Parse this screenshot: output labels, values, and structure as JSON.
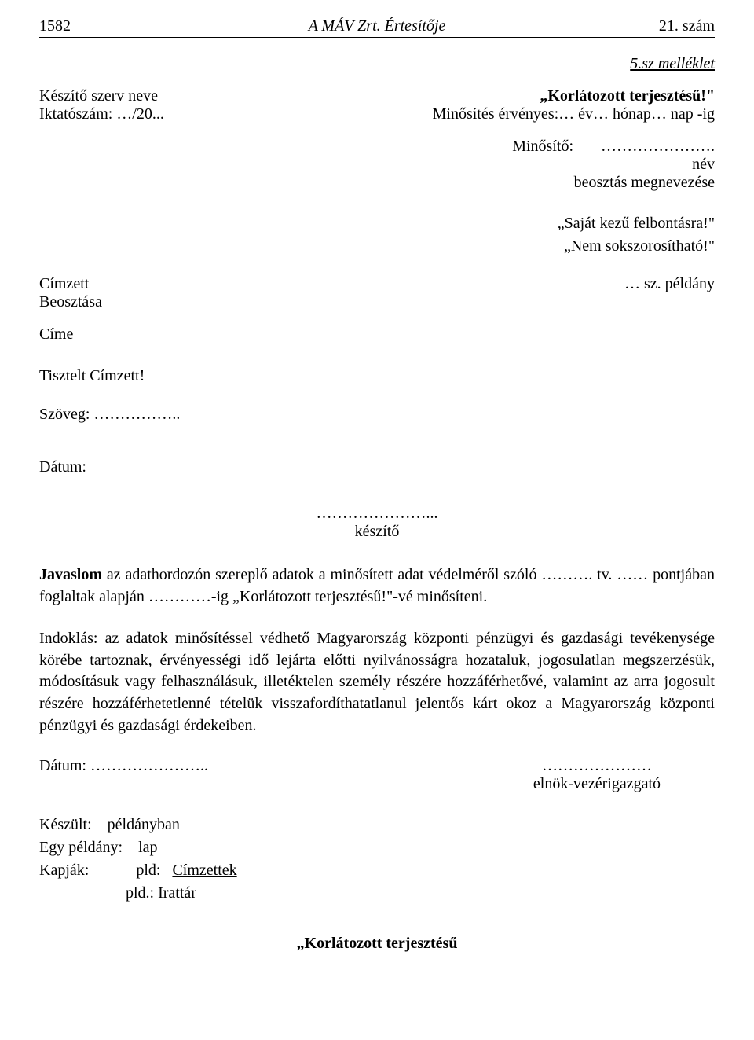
{
  "header": {
    "page_number": "1582",
    "title": "A MÁV Zrt. Értesítője",
    "issue": "21. szám"
  },
  "attachment_label": "5.sz melléklet",
  "sender": {
    "org_label": "Készítő szerv neve",
    "ref_label": "Iktatószám: …/20...",
    "classification": "„Korlátozott terjesztésű!\"",
    "validity": "Minősítés érvényes:… év… hónap… nap -ig"
  },
  "approver": {
    "label": "Minősítő:",
    "dots": "………………….",
    "name_line": "név",
    "position_line": "beosztás megnevezése"
  },
  "handling": {
    "line1": "„Saját kezű felbontásra!\"",
    "line2": "„Nem sokszorosítható!\""
  },
  "copy_line": "… sz. példány",
  "recipient": {
    "l1": "Címzett",
    "l2": "Beosztása",
    "l3": "Címe"
  },
  "salutation": "Tisztelt Címzett!",
  "text_label": "Szöveg: ……………..",
  "date_label": "Dátum:",
  "maker": {
    "dots": "…………………...",
    "label": "készítő"
  },
  "proposal": {
    "span1": "Javaslom",
    "span2": " az adathordozón szereplő adatok a minősített adat védelméről szóló ………. tv. …… pontjában foglaltak alapján …………-ig „Korlátozott terjesztésű!\"-vé minősíteni."
  },
  "justification": "Indoklás: az adatok minősítéssel védhető Magyarország központi pénzügyi és gazdasági tevékenysége körébe tartoznak, érvényességi idő lejárta előtti nyilvánosságra hozataluk, jogosulatlan megszerzésük, módosításuk vagy felhasználásuk, illetéktelen személy részére hozzáférhetővé, valamint az arra jogosult részére hozzáférhetetlenné tételük visszafordíthatatlanul jelentős kárt okoz a Magyarország központi pénzügyi és gazdasági érdekeiben.",
  "date2": "Dátum:  …………………..",
  "signer": {
    "dots": "…………………",
    "role": "elnök-vezérigazgató"
  },
  "distribution": {
    "l1_a": "Készült:",
    "l1_b": "példányban",
    "l2_a": "Egy példány:",
    "l2_b": "lap",
    "l3_a": "Kapják:",
    "l3_b": "pld:",
    "l3_c": "Címzettek",
    "l4": "pld.: Irattár"
  },
  "footer_classification": "„Korlátozott terjesztésű"
}
